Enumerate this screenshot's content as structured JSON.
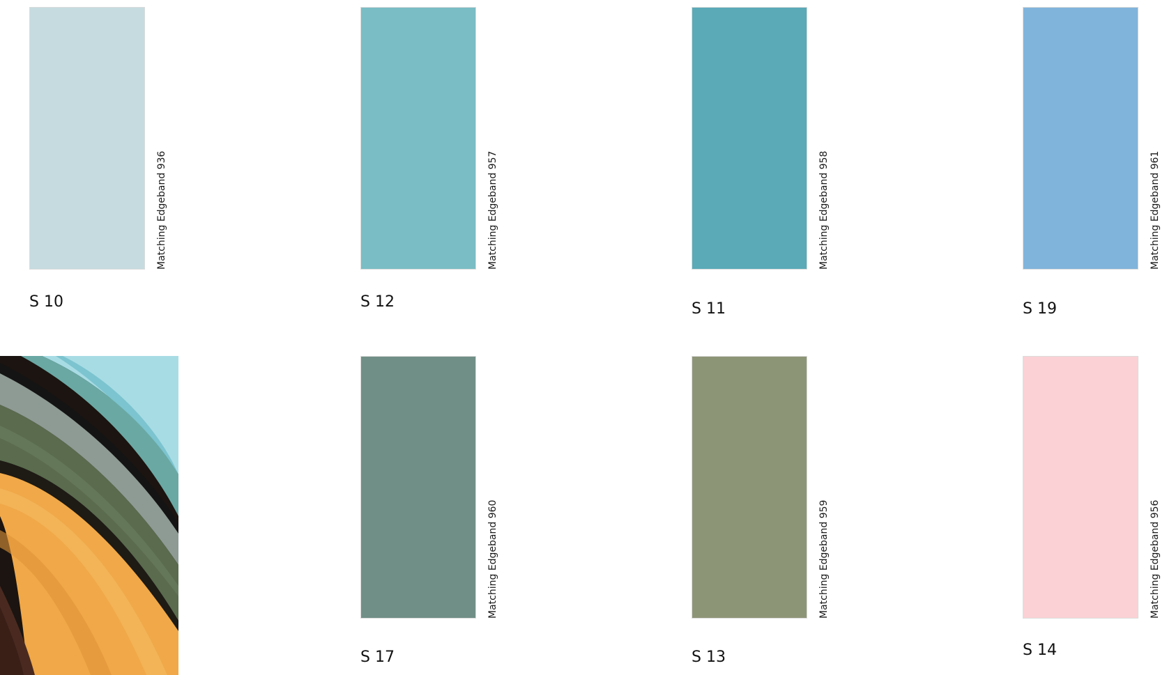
{
  "swatches": [
    {
      "code": "S 10",
      "edgeband": "Matching Edgeband 936",
      "color": "#c5dbdf"
    },
    {
      "code": "S 12",
      "edgeband": "Matching Edgeband 957",
      "color": "#7abdc4"
    },
    {
      "code": "S 11",
      "edgeband": "Matching Edgeband 958",
      "color": "#5aaab8"
    },
    {
      "code": "S 19",
      "edgeband": "Matching Edgeband 961",
      "color": "#80b4db"
    },
    {
      "code": "S 17",
      "edgeband": "Matching Edgeband 960",
      "color": "#708f87"
    },
    {
      "code": "S 13",
      "edgeband": "Matching Edgeband 959",
      "color": "#8d9577"
    },
    {
      "code": "S 14",
      "edgeband": "Matching Edgeband 956",
      "color": "#fbd1d5"
    }
  ],
  "photo": {
    "subject": "edgeband-rolls-closeup",
    "colors": [
      "#f0a848",
      "#5a6b4e",
      "#6aa8a4",
      "#a8dce4",
      "#4a2a20"
    ]
  }
}
